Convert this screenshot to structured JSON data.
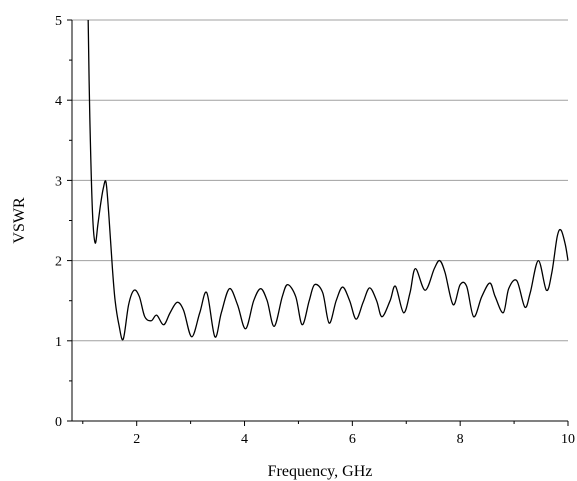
{
  "chart_data": {
    "type": "line",
    "title": "",
    "xlabel": "Frequency, GHz",
    "ylabel": "VSWR",
    "xlim": [
      0.8,
      10
    ],
    "ylim": [
      0,
      5
    ],
    "xticks": [
      2,
      4,
      6,
      8,
      10
    ],
    "yticks": [
      0,
      1,
      2,
      3,
      4,
      5
    ],
    "grid": {
      "horizontal": true,
      "vertical": false
    },
    "legend": "none",
    "colors": {
      "line": "#000000",
      "grid": "#a0a0a0",
      "axis": "#000000"
    },
    "series": [
      {
        "x": [
          1.1,
          1.13,
          1.18,
          1.23,
          1.28,
          1.33,
          1.38,
          1.43,
          1.48,
          1.55,
          1.6,
          1.67,
          1.75,
          1.85,
          1.95,
          2.05,
          2.15,
          2.27,
          2.37,
          2.5,
          2.62,
          2.75,
          2.87,
          3.02,
          3.17,
          3.3,
          3.45,
          3.57,
          3.72,
          3.87,
          4.02,
          4.17,
          4.3,
          4.42,
          4.55,
          4.7,
          4.8,
          4.95,
          5.07,
          5.2,
          5.3,
          5.45,
          5.57,
          5.7,
          5.82,
          5.95,
          6.07,
          6.2,
          6.32,
          6.45,
          6.55,
          6.7,
          6.8,
          6.95,
          7.07,
          7.17,
          7.35,
          7.52,
          7.62,
          7.72,
          7.87,
          8.0,
          8.12,
          8.25,
          8.4,
          8.55,
          8.65,
          8.8,
          8.9,
          9.05,
          9.2,
          9.3,
          9.45,
          9.6,
          9.7,
          9.8,
          9.87,
          9.95,
          10.0
        ],
        "y": [
          5.0,
          3.8,
          2.6,
          2.22,
          2.45,
          2.7,
          2.9,
          2.98,
          2.6,
          1.9,
          1.5,
          1.2,
          1.02,
          1.45,
          1.63,
          1.55,
          1.3,
          1.25,
          1.32,
          1.2,
          1.35,
          1.48,
          1.38,
          1.05,
          1.35,
          1.6,
          1.05,
          1.35,
          1.65,
          1.45,
          1.15,
          1.5,
          1.65,
          1.5,
          1.18,
          1.55,
          1.7,
          1.55,
          1.2,
          1.5,
          1.7,
          1.6,
          1.22,
          1.5,
          1.67,
          1.5,
          1.27,
          1.48,
          1.66,
          1.5,
          1.3,
          1.5,
          1.68,
          1.35,
          1.6,
          1.9,
          1.63,
          1.9,
          2.0,
          1.85,
          1.45,
          1.7,
          1.68,
          1.3,
          1.55,
          1.72,
          1.55,
          1.35,
          1.65,
          1.75,
          1.42,
          1.6,
          2.0,
          1.63,
          1.85,
          2.3,
          2.38,
          2.2,
          2.0
        ]
      }
    ]
  }
}
